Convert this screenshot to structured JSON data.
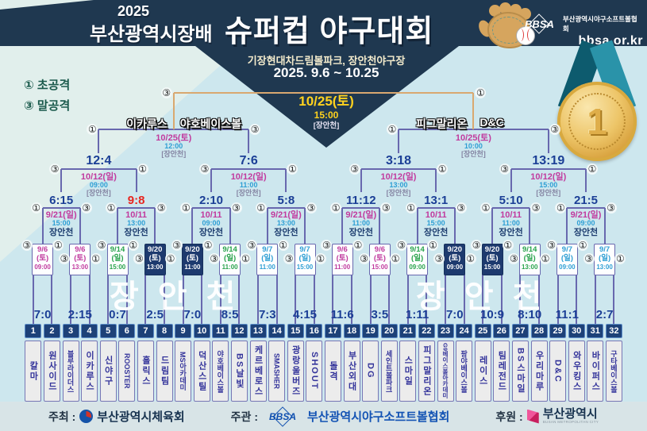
{
  "header": {
    "year": "2025",
    "title_prefix": "부산광역시장배",
    "title_main": "슈퍼컵 야구대회",
    "venue": "기장현대차드림볼파크, 장안천야구장",
    "dates": "2025. 9.6 ~ 10.25",
    "org_abbr": "BBSA",
    "org_name": "부산광역시야구소프트볼협회",
    "org_url": "bbsa.or.kr",
    "medal_number": "1"
  },
  "legend": {
    "first_attack": "① 초공격",
    "last_attack": "③ 말공격"
  },
  "watermark": "장안천",
  "colors": {
    "header_navy": "#1f3850",
    "background": "#cde7ee",
    "line_indigo": "#6868ae",
    "line_tan": "#d9a870",
    "score_navy": "#1b3f96",
    "score_red": "#e8251f",
    "date_magenta": "#c13a9e",
    "date_green": "#28a34b",
    "date_blue": "#2e9fd4",
    "box_filled_navy": "#1d3a6e",
    "final_yellow": "#ffd21e"
  },
  "bracket": {
    "marks": {
      "early": "①",
      "late": "③"
    },
    "final": {
      "date": "10/25(토)",
      "time": "15:00",
      "venue": "[장안천]"
    },
    "semifinals": [
      {
        "left_team": "이카루스",
        "right_team": "야호베이스볼",
        "date": "10/25(토)",
        "time": "12:00",
        "venue": "[장안천]"
      },
      {
        "left_team": "피그말리온",
        "right_team": "D&C",
        "date": "10/25(토)",
        "time": "10:00",
        "venue": "[장안천]"
      }
    ],
    "quarterfinals": [
      {
        "score": "12:4",
        "date": "10/12(일)",
        "time": "09:00",
        "venue": "[장안천]"
      },
      {
        "score": "7:6",
        "date": "10/12(일)",
        "time": "11:00",
        "venue": "[장안천]"
      },
      {
        "score": "3:18",
        "date": "10/12(일)",
        "time": "13:00",
        "venue": "[장안천]"
      },
      {
        "score": "13:19",
        "date": "10/12(일)",
        "time": "15:00",
        "venue": "[장안천]"
      }
    ],
    "round16": [
      {
        "score": "6:15",
        "date": "9/21(일)",
        "time": "15:00",
        "venue": "장안천",
        "red": false
      },
      {
        "score": "9:8",
        "date": "10/11",
        "time": "13:00",
        "venue": "장안천",
        "red": true
      },
      {
        "score": "2:10",
        "date": "10/11",
        "time": "09:00",
        "venue": "장안천",
        "red": false
      },
      {
        "score": "5:8",
        "date": "9/21(일)",
        "time": "13:00",
        "venue": "장안천",
        "red": false
      },
      {
        "score": "11:12",
        "date": "9/21(일)",
        "time": "11:00",
        "venue": "장안천",
        "red": false
      },
      {
        "score": "13:1",
        "date": "10/11",
        "time": "15:00",
        "venue": "장안천",
        "red": false
      },
      {
        "score": "5:10",
        "date": "10/11",
        "time": "11:00",
        "venue": "장안천",
        "red": false
      },
      {
        "score": "21:5",
        "date": "9/21(일)",
        "time": "09:00",
        "venue": "장안천",
        "red": false
      }
    ],
    "round32": [
      {
        "score": "7:0",
        "date": "9/6",
        "day": "(토)",
        "time": "09:00",
        "style": "m"
      },
      {
        "score": "2:15",
        "date": "9/6",
        "day": "(토)",
        "time": "13:00",
        "style": "m"
      },
      {
        "score": "0:7",
        "date": "9/14",
        "day": "(일)",
        "time": "15:00",
        "style": "g"
      },
      {
        "score": "2:5",
        "date": "9/20",
        "day": "(토)",
        "time": "13:00",
        "style": "f"
      },
      {
        "score": "7:0",
        "date": "9/20",
        "day": "(토)",
        "time": "11:00",
        "style": "f"
      },
      {
        "score": "8:5",
        "date": "9/14",
        "day": "(일)",
        "time": "11:00",
        "style": "g"
      },
      {
        "score": "7:3",
        "date": "9/7",
        "day": "(일)",
        "time": "11:00",
        "style": "b"
      },
      {
        "score": "4:15",
        "date": "9/7",
        "day": "(일)",
        "time": "15:00",
        "style": "b"
      },
      {
        "score": "11:6",
        "date": "9/6",
        "day": "(토)",
        "time": "11:00",
        "style": "m"
      },
      {
        "score": "3:5",
        "date": "9/6",
        "day": "(토)",
        "time": "15:00",
        "style": "m"
      },
      {
        "score": "1:11",
        "date": "9/14",
        "day": "(일)",
        "time": "09:00",
        "style": "g"
      },
      {
        "score": "7:0",
        "date": "9/20",
        "day": "(토)",
        "time": "09:00",
        "style": "f"
      },
      {
        "score": "10:9",
        "date": "9/20",
        "day": "(토)",
        "time": "15:00",
        "style": "f"
      },
      {
        "score": "8:10",
        "date": "9/14",
        "day": "(일)",
        "time": "13:00",
        "style": "g"
      },
      {
        "score": "11:1",
        "date": "9/7",
        "day": "(일)",
        "time": "09:00",
        "style": "b"
      },
      {
        "score": "2:7",
        "date": "9/7",
        "day": "(일)",
        "time": "13:00",
        "style": "b"
      }
    ],
    "teams": [
      {
        "no": "1",
        "name": "칼마"
      },
      {
        "no": "2",
        "name": "원사이드"
      },
      {
        "no": "3",
        "name": "블루라이더스"
      },
      {
        "no": "4",
        "name": "이카루스"
      },
      {
        "no": "5",
        "name": "신야구"
      },
      {
        "no": "6",
        "name": "ROOSTER"
      },
      {
        "no": "7",
        "name": "홀릭스"
      },
      {
        "no": "8",
        "name": "드림팀"
      },
      {
        "no": "9",
        "name": "MS아카데미"
      },
      {
        "no": "10",
        "name": "덕산스틸"
      },
      {
        "no": "11",
        "name": "야호베이스볼"
      },
      {
        "no": "12",
        "name": "BS날빛"
      },
      {
        "no": "13",
        "name": "케르베로스"
      },
      {
        "no": "14",
        "name": "SMASHER"
      },
      {
        "no": "15",
        "name": "광랑울버즈"
      },
      {
        "no": "16",
        "name": "SHOUT"
      },
      {
        "no": "17",
        "name": "돌격"
      },
      {
        "no": "18",
        "name": "부산외대"
      },
      {
        "no": "19",
        "name": "DG"
      },
      {
        "no": "20",
        "name": "세인트볼파크"
      },
      {
        "no": "21",
        "name": "스마일"
      },
      {
        "no": "22",
        "name": "피그말리온"
      },
      {
        "no": "23",
        "name": "G9베이스볼아카데미"
      },
      {
        "no": "24",
        "name": "팡야베이스볼"
      },
      {
        "no": "25",
        "name": "레이스"
      },
      {
        "no": "26",
        "name": "팀레전드"
      },
      {
        "no": "27",
        "name": "BS스마일"
      },
      {
        "no": "28",
        "name": "우리마루"
      },
      {
        "no": "29",
        "name": "D&C"
      },
      {
        "no": "30",
        "name": "와우킹스"
      },
      {
        "no": "31",
        "name": "바이퍼스"
      },
      {
        "no": "32",
        "name": "구타베이스볼"
      }
    ]
  },
  "footer": {
    "host_label": "주최 :",
    "host": "부산광역시체육회",
    "organizer_label": "주관 :",
    "organizer_abbr": "BBSA",
    "organizer": "부산광역시야구소프트볼협회",
    "sponsor_label": "후원 :",
    "sponsor": "부산광역시",
    "sponsor_sub": "BUSAN METROPOLITAN CITY"
  }
}
